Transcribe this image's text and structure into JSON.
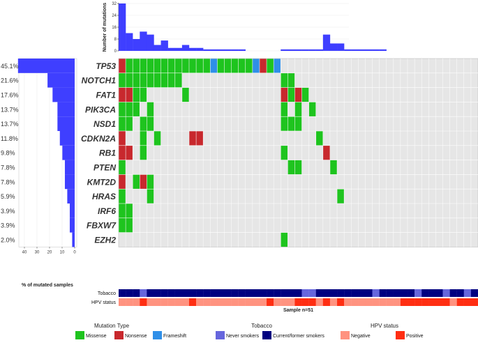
{
  "chart_data": {
    "type": "heatmap",
    "title": "",
    "n_samples": 51,
    "colors": {
      "Missense": "#1ec41e",
      "Nonsense": "#c8282d",
      "Frameshift": "#2f8fe8",
      "Never smokers": "#6666dd",
      "Current/former smokers": "#000080",
      "Negative": "#ff9380",
      "Positive": "#ff2e12",
      "bar": "#3f3fff",
      "background": "#e6e6e6"
    },
    "top_bar": {
      "ylabel": "Number of mutations",
      "ylim": [
        0,
        32
      ],
      "yticks": [
        0,
        8,
        16,
        24,
        32
      ],
      "values": [
        32,
        12,
        8,
        13,
        11,
        4,
        7,
        2,
        2,
        4,
        2,
        2,
        1,
        1,
        1,
        1,
        1,
        1,
        1,
        1,
        1,
        1,
        1,
        1,
        11,
        5,
        5,
        1,
        1,
        1,
        1,
        1,
        1
      ],
      "blank_after": 18
    },
    "genes": [
      {
        "name": "TP53",
        "pct": "45.1%",
        "pct_value": 45.1,
        "cells": [
          [
            0,
            "Nonsense"
          ],
          [
            1,
            "Missense"
          ],
          [
            2,
            "Missense"
          ],
          [
            3,
            "Missense"
          ],
          [
            4,
            "Missense"
          ],
          [
            5,
            "Missense"
          ],
          [
            6,
            "Missense"
          ],
          [
            7,
            "Missense"
          ],
          [
            8,
            "Missense"
          ],
          [
            9,
            "Missense"
          ],
          [
            10,
            "Missense"
          ],
          [
            11,
            "Missense"
          ],
          [
            12,
            "Missense"
          ],
          [
            13,
            "Frameshift"
          ],
          [
            14,
            "Missense"
          ],
          [
            15,
            "Missense"
          ],
          [
            16,
            "Missense"
          ],
          [
            17,
            "Missense"
          ],
          [
            18,
            "Missense"
          ],
          [
            19,
            "Frameshift"
          ],
          [
            20,
            "Nonsense"
          ],
          [
            21,
            "Missense"
          ],
          [
            22,
            "Frameshift"
          ]
        ]
      },
      {
        "name": "NOTCH1",
        "pct": "21.6%",
        "pct_value": 21.6,
        "cells": [
          [
            0,
            "Missense"
          ],
          [
            1,
            "Missense"
          ],
          [
            2,
            "Missense"
          ],
          [
            3,
            "Missense"
          ],
          [
            4,
            "Missense"
          ],
          [
            5,
            "Missense"
          ],
          [
            6,
            "Missense"
          ],
          [
            7,
            "Missense"
          ],
          [
            8,
            "Missense"
          ],
          [
            23,
            "Missense"
          ],
          [
            24,
            "Missense"
          ]
        ]
      },
      {
        "name": "FAT1",
        "pct": "17.6%",
        "pct_value": 17.6,
        "cells": [
          [
            0,
            "Nonsense"
          ],
          [
            1,
            "Nonsense"
          ],
          [
            2,
            "Missense"
          ],
          [
            3,
            "Missense"
          ],
          [
            9,
            "Missense"
          ],
          [
            23,
            "Nonsense"
          ],
          [
            24,
            "Missense"
          ],
          [
            25,
            "Nonsense"
          ],
          [
            26,
            "Missense"
          ]
        ]
      },
      {
        "name": "PIK3CA",
        "pct": "13.7%",
        "pct_value": 13.7,
        "cells": [
          [
            0,
            "Missense"
          ],
          [
            1,
            "Missense"
          ],
          [
            2,
            "Missense"
          ],
          [
            4,
            "Missense"
          ],
          [
            23,
            "Missense"
          ],
          [
            25,
            "Missense"
          ],
          [
            27,
            "Missense"
          ]
        ]
      },
      {
        "name": "NSD1",
        "pct": "13.7%",
        "pct_value": 13.7,
        "cells": [
          [
            0,
            "Missense"
          ],
          [
            1,
            "Missense"
          ],
          [
            3,
            "Missense"
          ],
          [
            4,
            "Missense"
          ],
          [
            23,
            "Missense"
          ],
          [
            24,
            "Missense"
          ],
          [
            25,
            "Missense"
          ]
        ]
      },
      {
        "name": "CDKN2A",
        "pct": "11.8%",
        "pct_value": 11.8,
        "cells": [
          [
            0,
            "Nonsense"
          ],
          [
            3,
            "Missense"
          ],
          [
            5,
            "Missense"
          ],
          [
            10,
            "Nonsense"
          ],
          [
            11,
            "Nonsense"
          ],
          [
            28,
            "Missense"
          ]
        ]
      },
      {
        "name": "RB1",
        "pct": "9.8%",
        "pct_value": 9.8,
        "cells": [
          [
            0,
            "Nonsense"
          ],
          [
            1,
            "Nonsense"
          ],
          [
            3,
            "Missense"
          ],
          [
            23,
            "Missense"
          ],
          [
            29,
            "Nonsense"
          ]
        ]
      },
      {
        "name": "PTEN",
        "pct": "7.8%",
        "pct_value": 7.8,
        "cells": [
          [
            0,
            "Missense"
          ],
          [
            24,
            "Missense"
          ],
          [
            25,
            "Missense"
          ],
          [
            30,
            "Missense"
          ]
        ]
      },
      {
        "name": "KMT2D",
        "pct": "7.8%",
        "pct_value": 7.8,
        "cells": [
          [
            0,
            "Nonsense"
          ],
          [
            2,
            "Missense"
          ],
          [
            3,
            "Nonsense"
          ],
          [
            4,
            "Missense"
          ]
        ]
      },
      {
        "name": "HRAS",
        "pct": "5.9%",
        "pct_value": 5.9,
        "cells": [
          [
            0,
            "Missense"
          ],
          [
            4,
            "Missense"
          ],
          [
            31,
            "Missense"
          ]
        ]
      },
      {
        "name": "IRF6",
        "pct": "3.9%",
        "pct_value": 3.9,
        "cells": [
          [
            0,
            "Missense"
          ],
          [
            1,
            "Missense"
          ]
        ]
      },
      {
        "name": "FBXW7",
        "pct": "3.9%",
        "pct_value": 3.9,
        "cells": [
          [
            0,
            "Missense"
          ],
          [
            1,
            "Missense"
          ]
        ]
      },
      {
        "name": "EZH2",
        "pct": "2.0%",
        "pct_value": 2.0,
        "cells": [
          [
            23,
            "Missense"
          ]
        ]
      }
    ],
    "left_bar": {
      "xlabel": "% of mutated samples",
      "xticks": [
        40,
        30,
        20,
        10,
        0
      ],
      "xlim": [
        0,
        47
      ]
    },
    "tracks": [
      {
        "name": "Tobacco",
        "default": "Current/former smokers",
        "exceptions": [
          [
            3,
            "Never smokers"
          ],
          [
            26,
            "Never smokers"
          ],
          [
            27,
            "Never smokers"
          ],
          [
            36,
            "Never smokers"
          ],
          [
            42,
            "Never smokers"
          ],
          [
            46,
            "Never smokers"
          ],
          [
            49,
            "Never smokers"
          ]
        ]
      },
      {
        "name": "HPV status",
        "default": "Negative",
        "exceptions": [
          [
            3,
            "Positive"
          ],
          [
            10,
            "Positive"
          ],
          [
            21,
            "Positive"
          ],
          [
            25,
            "Positive"
          ],
          [
            26,
            "Positive"
          ],
          [
            27,
            "Positive"
          ],
          [
            29,
            "Positive"
          ],
          [
            31,
            "Positive"
          ],
          [
            40,
            "Positive"
          ],
          [
            41,
            "Positive"
          ],
          [
            42,
            "Positive"
          ],
          [
            43,
            "Positive"
          ],
          [
            44,
            "Positive"
          ],
          [
            45,
            "Positive"
          ],
          [
            46,
            "Positive"
          ],
          [
            48,
            "Positive"
          ],
          [
            49,
            "Positive"
          ],
          [
            50,
            "Positive"
          ]
        ]
      }
    ],
    "sample_label": "Sample n=51",
    "legend": [
      {
        "title": "Mutation Type",
        "items": [
          "Missense",
          "Nonsense",
          "Frameshift"
        ]
      },
      {
        "title": "Tobacco",
        "items": [
          "Never smokers",
          "Current/former smokers"
        ]
      },
      {
        "title": "HPV status",
        "items": [
          "Negative",
          "Positive"
        ]
      }
    ]
  }
}
